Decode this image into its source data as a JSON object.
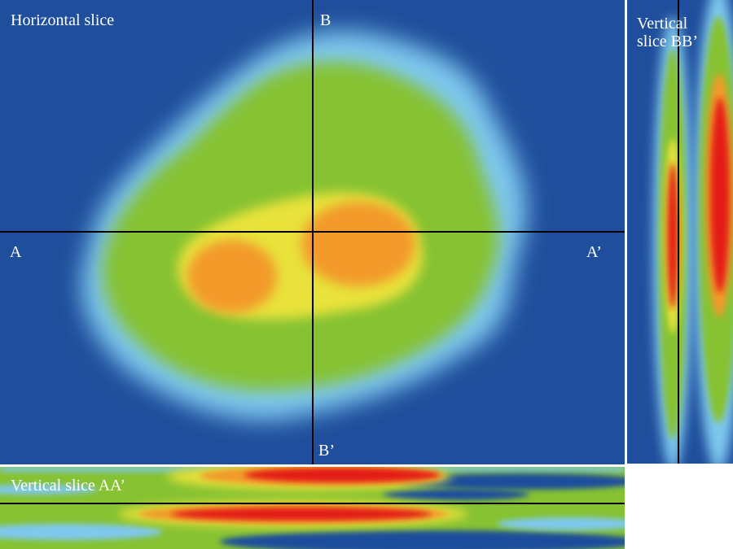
{
  "panels": {
    "horizontal": {
      "title": "Horizontal slice"
    },
    "vertical_bb": {
      "title_line1": "Vertical",
      "title_line2": "slice BB’"
    },
    "vertical_aa": {
      "title": "Vertical slice AA’"
    }
  },
  "markers": {
    "a": "A",
    "a_prime": "A’",
    "b": "B",
    "b_prime": "B’"
  },
  "colors": {
    "background": "#1f4e9c",
    "light_blue": "#7ec8ee",
    "green": "#86c232",
    "yellow": "#e8e23a",
    "orange": "#f39a2a",
    "red": "#e31e14",
    "section_line": "#000000",
    "label_text": "#ffffff"
  }
}
